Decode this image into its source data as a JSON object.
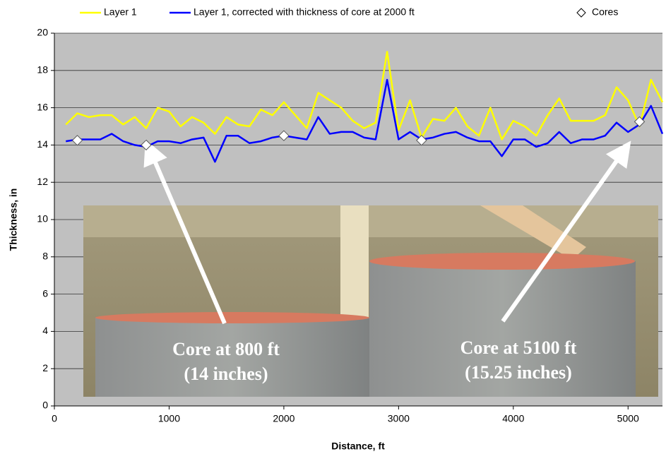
{
  "chart_data": {
    "type": "line",
    "xlabel": "Distance, ft",
    "ylabel": "Thickness, in",
    "xlim": [
      0,
      5300
    ],
    "xticks": [
      0,
      1000,
      2000,
      3000,
      4000,
      5000
    ],
    "ylim": [
      0,
      20
    ],
    "yticks": [
      0,
      2,
      4,
      6,
      8,
      10,
      12,
      14,
      16,
      18,
      20
    ],
    "grid": true,
    "legend": "top",
    "series": [
      {
        "name": "Layer 1",
        "color": "#ffff00",
        "line": true,
        "x": [
          100,
          200,
          300,
          400,
          500,
          600,
          700,
          800,
          900,
          1000,
          1100,
          1200,
          1300,
          1400,
          1500,
          1600,
          1700,
          1800,
          1900,
          2000,
          2100,
          2200,
          2300,
          2400,
          2500,
          2600,
          2700,
          2800,
          2900,
          3000,
          3100,
          3200,
          3300,
          3400,
          3500,
          3600,
          3700,
          3800,
          3900,
          4000,
          4100,
          4200,
          4300,
          4400,
          4500,
          4600,
          4700,
          4800,
          4900,
          5000,
          5100,
          5200,
          5300
        ],
        "values": [
          15.1,
          15.7,
          15.5,
          15.6,
          15.6,
          15.1,
          15.5,
          14.9,
          16.0,
          15.8,
          15.0,
          15.5,
          15.2,
          14.6,
          15.5,
          15.1,
          15.0,
          15.9,
          15.6,
          16.3,
          15.6,
          14.9,
          16.8,
          16.4,
          16.0,
          15.3,
          14.9,
          15.2,
          19.0,
          14.8,
          16.4,
          14.4,
          15.4,
          15.3,
          16.0,
          15.0,
          14.5,
          16.0,
          14.3,
          15.3,
          15.0,
          14.5,
          15.6,
          16.5,
          15.3,
          15.3,
          15.3,
          15.6,
          17.1,
          16.4,
          15.0,
          17.5,
          16.3
        ]
      },
      {
        "name": "Layer 1, corrected with thickness of core at 2000 ft",
        "color": "#0000ff",
        "line": true,
        "x": [
          100,
          200,
          300,
          400,
          500,
          600,
          700,
          800,
          900,
          1000,
          1100,
          1200,
          1300,
          1400,
          1500,
          1600,
          1700,
          1800,
          1900,
          2000,
          2100,
          2200,
          2300,
          2400,
          2500,
          2600,
          2700,
          2800,
          2900,
          3000,
          3100,
          3200,
          3300,
          3400,
          3500,
          3600,
          3700,
          3800,
          3900,
          4000,
          4100,
          4200,
          4300,
          4400,
          4500,
          4600,
          4700,
          4800,
          4900,
          5000,
          5100,
          5200,
          5300
        ],
        "values": [
          14.2,
          14.3,
          14.3,
          14.3,
          14.6,
          14.2,
          14.0,
          13.9,
          14.2,
          14.2,
          14.1,
          14.3,
          14.4,
          13.1,
          14.5,
          14.5,
          14.1,
          14.2,
          14.4,
          14.5,
          14.4,
          14.3,
          15.5,
          14.6,
          14.7,
          14.7,
          14.4,
          14.3,
          17.5,
          14.3,
          14.7,
          14.3,
          14.4,
          14.6,
          14.7,
          14.4,
          14.2,
          14.2,
          13.4,
          14.3,
          14.3,
          13.9,
          14.1,
          14.7,
          14.1,
          14.3,
          14.3,
          14.5,
          15.2,
          14.7,
          15.1,
          16.1,
          14.6
        ]
      },
      {
        "name": "Cores",
        "color": "#ffffff",
        "line": false,
        "marker": "diamond",
        "x": [
          200,
          800,
          2000,
          3200,
          5100
        ],
        "values": [
          14.25,
          14,
          14.5,
          14.25,
          15.25
        ]
      }
    ],
    "annotations": [
      "Core at 800 ft",
      "(14 inches)",
      "Core at 5100 ft",
      "(15.25 inches)"
    ]
  }
}
